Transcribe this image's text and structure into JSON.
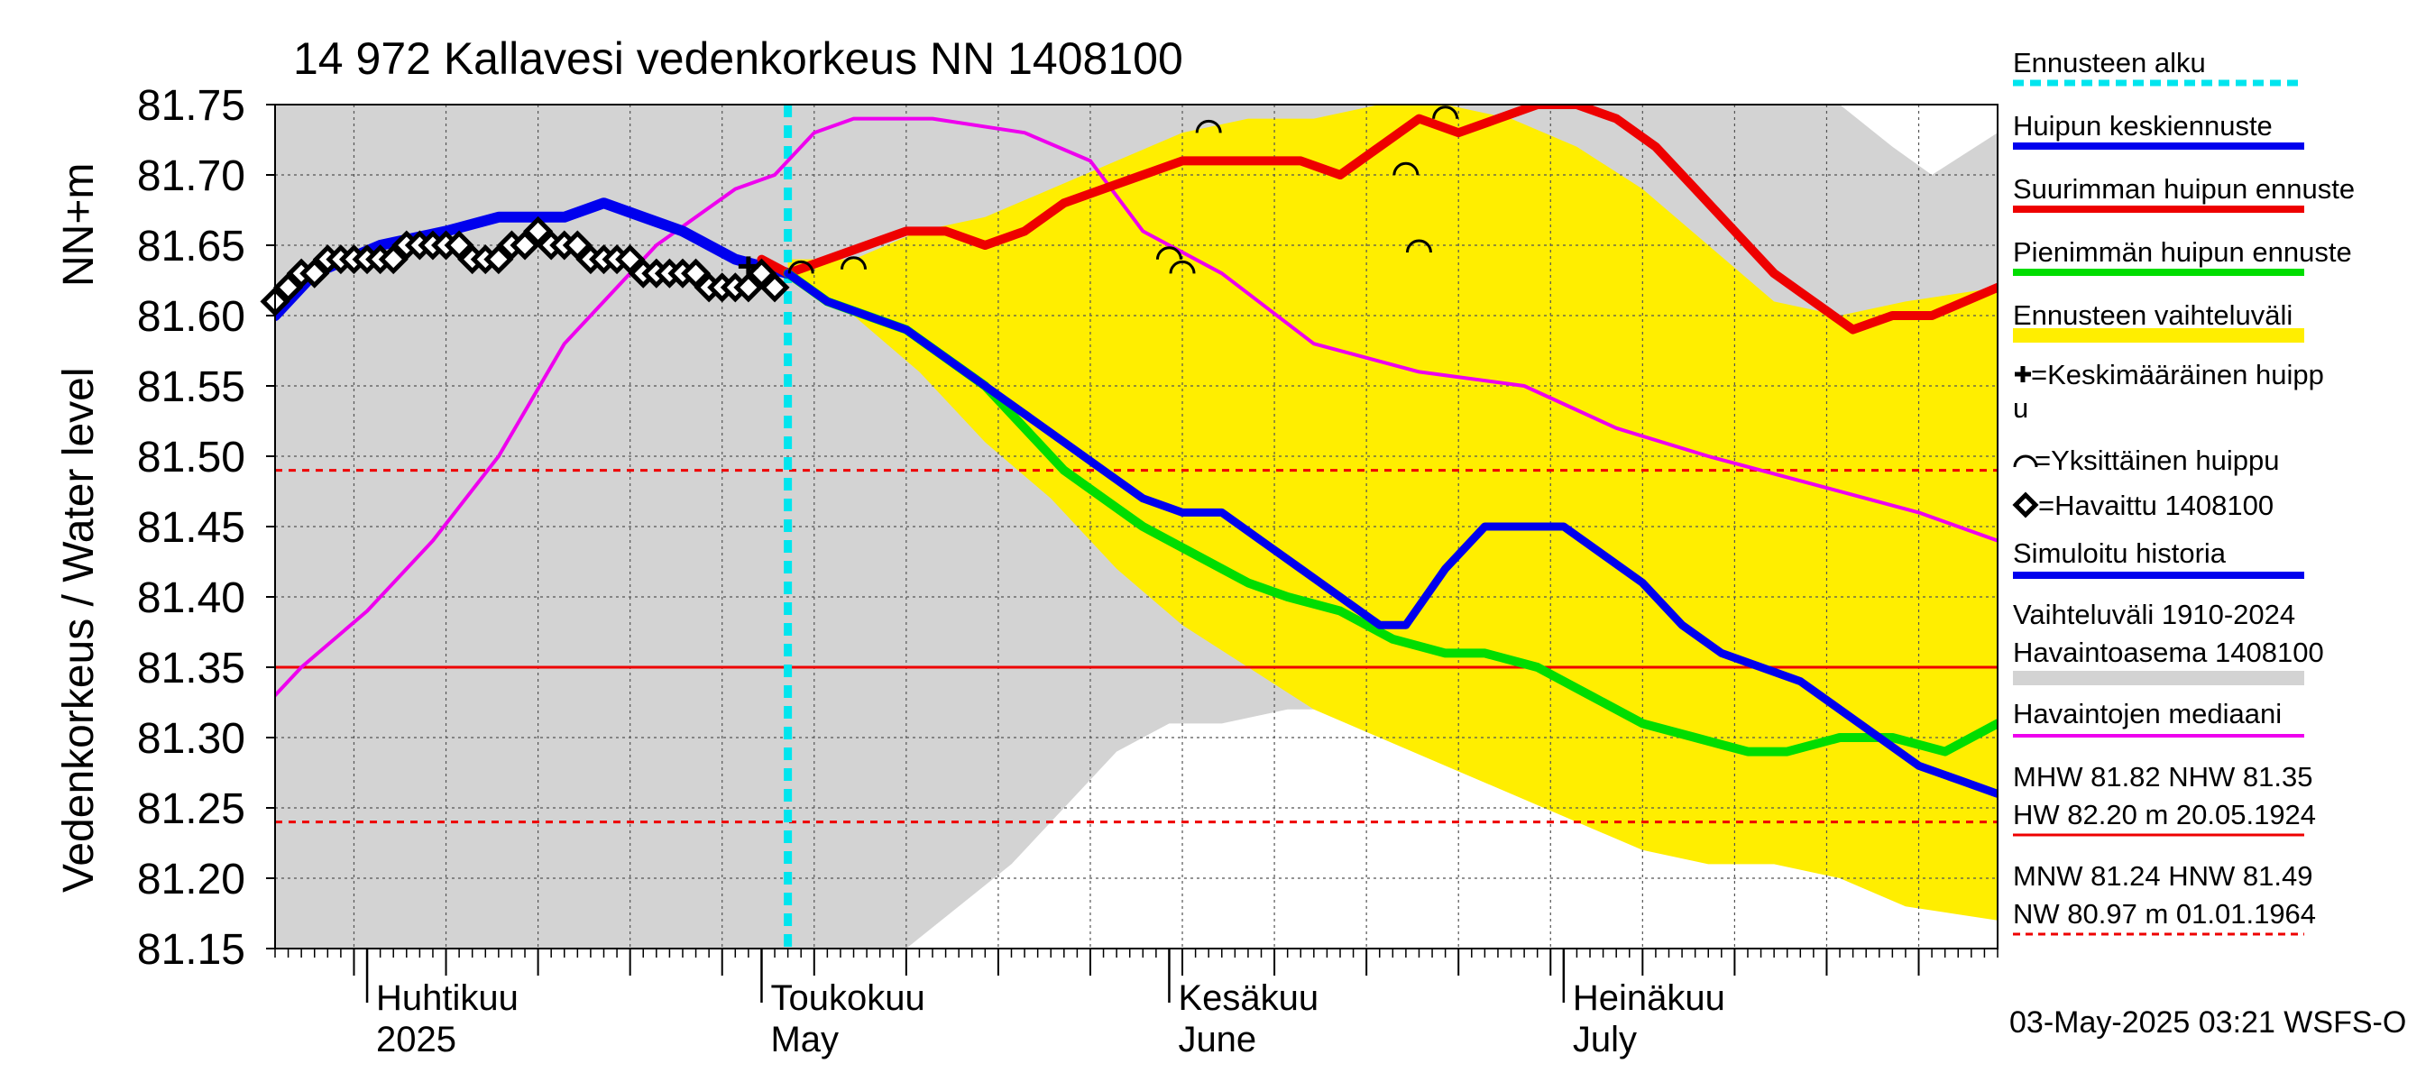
{
  "chart_data": {
    "type": "line",
    "title": "14 972 Kallavesi vedenkorkeus NN 1408100",
    "ylabel_top": "NN+m",
    "ylabel": "Vedenkorkeus / Water level",
    "footer": "03-May-2025 03:21 WSFS-O",
    "x_range": [
      "2025-03-25",
      "2025-08-03"
    ],
    "ylim": [
      81.15,
      81.75
    ],
    "yticks": [
      "81.75",
      "81.70",
      "81.65",
      "81.60",
      "81.55",
      "81.50",
      "81.45",
      "81.40",
      "81.35",
      "81.30",
      "81.25",
      "81.20",
      "81.15"
    ],
    "grid": true,
    "forecast_start": "2025-05-03",
    "month_labels": [
      {
        "date": "2025-04-01",
        "fi": "Huhtikuu",
        "en": "2025"
      },
      {
        "date": "2025-05-01",
        "fi": "Toukokuu",
        "en": "May"
      },
      {
        "date": "2025-06-01",
        "fi": "Kesäkuu",
        "en": "June"
      },
      {
        "date": "2025-07-01",
        "fi": "Heinäkuu",
        "en": "July"
      }
    ],
    "reference_lines": [
      {
        "name": "NHW",
        "value": 81.35,
        "color": "#ee0000",
        "style": "solid"
      },
      {
        "name": "HNW",
        "value": 81.49,
        "color": "#ee0000",
        "style": "dashed"
      },
      {
        "name": "MNW",
        "value": 81.24,
        "color": "#ee0000",
        "style": "dashed"
      }
    ],
    "legend": {
      "placement": "right",
      "items": [
        {
          "label": "Ennusteen alku",
          "color": "#00e5ee",
          "kind": "dashed-line"
        },
        {
          "label": "Huipun keskiennuste",
          "color": "#0000ee",
          "kind": "line"
        },
        {
          "label": "Suurimman huipun ennuste",
          "color": "#ee0000",
          "kind": "line"
        },
        {
          "label": "Pienimmän huipun ennuste",
          "color": "#00dd00",
          "kind": "line"
        },
        {
          "label": "Ennusteen vaihteluväli",
          "color": "#ffee00",
          "kind": "band"
        },
        {
          "label": "=Keskimääräinen huipp\nu",
          "color": "#000000",
          "kind": "plus"
        },
        {
          "label": "=Yksittäinen huippu",
          "color": "#000000",
          "kind": "arc"
        },
        {
          "label": "=Havaittu 1408100",
          "color": "#000000",
          "kind": "diamond"
        },
        {
          "label": "Simuloitu historia",
          "color": "#0000ee",
          "kind": "line"
        },
        {
          "label": "Vaihteluväli 1910-2024\n Havaintoasema 1408100",
          "color": "#d3d3d3",
          "kind": "band"
        },
        {
          "label": "Havaintojen mediaani",
          "color": "#ee00ee",
          "kind": "line"
        }
      ],
      "stats": [
        {
          "line1": "MHW  81.82 NHW  81.35",
          "line2": "HW  82.20 m 20.05.1924",
          "color": "#ee0000",
          "style": "solid"
        },
        {
          "line1": "MNW  81.24 HNW  81.49",
          "line2": "NW  80.97 m 01.01.1964",
          "color": "#ee0000",
          "style": "dashed"
        }
      ]
    },
    "hist_band": {
      "color": "#d3d3d3",
      "x": [
        "2025-03-25",
        "2025-05-03",
        "2025-05-04",
        "2025-05-12",
        "2025-05-20",
        "2025-05-28",
        "2025-06-01",
        "2025-06-05",
        "2025-06-10",
        "2025-06-14",
        "2025-06-18",
        "2025-06-25",
        "2025-07-02",
        "2025-07-08",
        "2025-07-15",
        "2025-07-22",
        "2025-07-26",
        "2025-07-29",
        "2025-08-03"
      ],
      "upper": [
        81.75,
        81.75,
        81.75,
        81.75,
        81.75,
        81.75,
        81.75,
        81.75,
        81.75,
        81.75,
        81.75,
        81.75,
        81.75,
        81.75,
        81.75,
        81.75,
        81.72,
        81.7,
        81.73
      ],
      "lower": [
        81.15,
        81.15,
        81.15,
        81.15,
        81.21,
        81.29,
        81.31,
        81.31,
        81.32,
        81.32,
        81.32,
        81.32,
        81.32,
        81.32,
        81.32,
        81.32,
        81.32,
        81.32,
        81.32
      ]
    },
    "forecast_band": {
      "color": "#ffee00",
      "x": [
        "2025-05-03",
        "2025-05-08",
        "2025-05-13",
        "2025-05-18",
        "2025-05-23",
        "2025-05-28",
        "2025-06-02",
        "2025-06-07",
        "2025-06-12",
        "2025-06-17",
        "2025-06-22",
        "2025-06-27",
        "2025-07-02",
        "2025-07-07",
        "2025-07-12",
        "2025-07-17",
        "2025-07-22",
        "2025-07-27",
        "2025-08-03"
      ],
      "upper": [
        81.64,
        81.64,
        81.66,
        81.67,
        81.69,
        81.71,
        81.73,
        81.74,
        81.74,
        81.75,
        81.75,
        81.74,
        81.72,
        81.69,
        81.65,
        81.61,
        81.6,
        81.61,
        81.62
      ],
      "lower": [
        81.63,
        81.6,
        81.56,
        81.51,
        81.47,
        81.42,
        81.38,
        81.35,
        81.32,
        81.3,
        81.28,
        81.26,
        81.24,
        81.22,
        81.21,
        81.21,
        81.2,
        81.18,
        81.17
      ]
    },
    "series": [
      {
        "name": "Havaintojen mediaani",
        "color": "#ee00ee",
        "width": 4,
        "x": [
          "2025-03-25",
          "2025-03-27",
          "2025-04-01",
          "2025-04-06",
          "2025-04-11",
          "2025-04-16",
          "2025-04-20",
          "2025-04-23",
          "2025-04-26",
          "2025-04-29",
          "2025-05-02",
          "2025-05-05",
          "2025-05-08",
          "2025-05-14",
          "2025-05-21",
          "2025-05-26",
          "2025-05-30",
          "2025-06-05",
          "2025-06-12",
          "2025-06-20",
          "2025-06-28",
          "2025-07-05",
          "2025-07-12",
          "2025-07-20",
          "2025-07-28",
          "2025-08-03"
        ],
        "y": [
          81.33,
          81.35,
          81.39,
          81.44,
          81.5,
          81.58,
          81.62,
          81.65,
          81.67,
          81.69,
          81.7,
          81.73,
          81.74,
          81.74,
          81.73,
          81.71,
          81.66,
          81.63,
          81.58,
          81.56,
          81.55,
          81.52,
          81.5,
          81.48,
          81.46,
          81.44
        ]
      },
      {
        "name": "Simuloitu historia",
        "color": "#0000ee",
        "width": 12,
        "x": [
          "2025-03-25",
          "2025-03-28",
          "2025-04-02",
          "2025-04-07",
          "2025-04-11",
          "2025-04-16",
          "2025-04-19",
          "2025-04-22",
          "2025-04-25",
          "2025-04-29",
          "2025-05-03"
        ],
        "y": [
          81.6,
          81.63,
          81.65,
          81.66,
          81.67,
          81.67,
          81.68,
          81.67,
          81.66,
          81.64,
          81.63
        ]
      },
      {
        "name": "Havaittu 1408100",
        "color": "#000000",
        "width": 3,
        "marker": "diamond",
        "x": [
          "2025-03-25",
          "2025-03-26",
          "2025-03-27",
          "2025-03-28",
          "2025-03-29",
          "2025-03-30",
          "2025-03-31",
          "2025-04-01",
          "2025-04-02",
          "2025-04-03",
          "2025-04-04",
          "2025-04-05",
          "2025-04-06",
          "2025-04-07",
          "2025-04-08",
          "2025-04-09",
          "2025-04-10",
          "2025-04-11",
          "2025-04-12",
          "2025-04-13",
          "2025-04-14",
          "2025-04-15",
          "2025-04-16",
          "2025-04-17",
          "2025-04-18",
          "2025-04-19",
          "2025-04-20",
          "2025-04-21",
          "2025-04-22",
          "2025-04-23",
          "2025-04-24",
          "2025-04-25",
          "2025-04-26",
          "2025-04-27",
          "2025-04-28",
          "2025-04-29",
          "2025-04-30",
          "2025-05-01",
          "2025-05-02"
        ],
        "y": [
          81.61,
          81.62,
          81.63,
          81.63,
          81.64,
          81.64,
          81.64,
          81.64,
          81.64,
          81.64,
          81.65,
          81.65,
          81.65,
          81.65,
          81.65,
          81.64,
          81.64,
          81.64,
          81.65,
          81.65,
          81.66,
          81.65,
          81.65,
          81.65,
          81.64,
          81.64,
          81.64,
          81.64,
          81.63,
          81.63,
          81.63,
          81.63,
          81.63,
          81.62,
          81.62,
          81.62,
          81.62,
          81.63,
          81.62
        ]
      },
      {
        "name": "Suurimman huipun ennuste",
        "color": "#ee0000",
        "width": 10,
        "x": [
          "2025-05-01",
          "2025-05-03",
          "2025-05-06",
          "2025-05-09",
          "2025-05-12",
          "2025-05-15",
          "2025-05-18",
          "2025-05-21",
          "2025-05-24",
          "2025-05-27",
          "2025-05-30",
          "2025-06-02",
          "2025-06-05",
          "2025-06-08",
          "2025-06-11",
          "2025-06-14",
          "2025-06-17",
          "2025-06-20",
          "2025-06-23",
          "2025-06-26",
          "2025-06-29",
          "2025-07-02",
          "2025-07-05",
          "2025-07-08",
          "2025-07-11",
          "2025-07-14",
          "2025-07-17",
          "2025-07-20",
          "2025-07-23",
          "2025-07-26",
          "2025-07-29",
          "2025-08-03"
        ],
        "y": [
          81.64,
          81.63,
          81.64,
          81.65,
          81.66,
          81.66,
          81.65,
          81.66,
          81.68,
          81.69,
          81.7,
          81.71,
          81.71,
          81.71,
          81.71,
          81.7,
          81.72,
          81.74,
          81.73,
          81.74,
          81.75,
          81.75,
          81.74,
          81.72,
          81.69,
          81.66,
          81.63,
          81.61,
          81.59,
          81.6,
          81.6,
          81.62
        ]
      },
      {
        "name": "Pienimmän huipun ennuste",
        "color": "#00dd00",
        "width": 10,
        "x": [
          "2025-05-03",
          "2025-05-06",
          "2025-05-09",
          "2025-05-12",
          "2025-05-15",
          "2025-05-18",
          "2025-05-21",
          "2025-05-24",
          "2025-05-27",
          "2025-05-30",
          "2025-06-03",
          "2025-06-07",
          "2025-06-10",
          "2025-06-14",
          "2025-06-18",
          "2025-06-22",
          "2025-06-25",
          "2025-06-29",
          "2025-07-03",
          "2025-07-07",
          "2025-07-11",
          "2025-07-15",
          "2025-07-18",
          "2025-07-22",
          "2025-07-26",
          "2025-07-30",
          "2025-08-03"
        ],
        "y": [
          81.63,
          81.61,
          81.6,
          81.59,
          81.57,
          81.55,
          81.52,
          81.49,
          81.47,
          81.45,
          81.43,
          81.41,
          81.4,
          81.39,
          81.37,
          81.36,
          81.36,
          81.35,
          81.33,
          81.31,
          81.3,
          81.29,
          81.29,
          81.3,
          81.3,
          81.29,
          81.31
        ]
      },
      {
        "name": "Huipun keskiennuste",
        "color": "#0000ee",
        "width": 9,
        "x": [
          "2025-05-03",
          "2025-05-06",
          "2025-05-09",
          "2025-05-12",
          "2025-05-15",
          "2025-05-18",
          "2025-05-21",
          "2025-05-24",
          "2025-05-27",
          "2025-05-30",
          "2025-06-02",
          "2025-06-05",
          "2025-06-08",
          "2025-06-11",
          "2025-06-14",
          "2025-06-17",
          "2025-06-19",
          "2025-06-22",
          "2025-06-25",
          "2025-06-28",
          "2025-07-01",
          "2025-07-04",
          "2025-07-07",
          "2025-07-10",
          "2025-07-13",
          "2025-07-16",
          "2025-07-19",
          "2025-07-22",
          "2025-07-25",
          "2025-07-28",
          "2025-07-31",
          "2025-08-03"
        ],
        "y": [
          81.63,
          81.61,
          81.6,
          81.59,
          81.57,
          81.55,
          81.53,
          81.51,
          81.49,
          81.47,
          81.46,
          81.46,
          81.44,
          81.42,
          81.4,
          81.38,
          81.38,
          81.42,
          81.45,
          81.45,
          81.45,
          81.43,
          81.41,
          81.38,
          81.36,
          81.35,
          81.34,
          81.32,
          81.3,
          81.28,
          81.27,
          81.26
        ]
      }
    ],
    "single_peaks": [
      {
        "x": "2025-05-04",
        "y": 81.635
      },
      {
        "x": "2025-05-08",
        "y": 81.638
      },
      {
        "x": "2025-06-01",
        "y": 81.645
      },
      {
        "x": "2025-06-02",
        "y": 81.635
      },
      {
        "x": "2025-06-04",
        "y": 81.735
      },
      {
        "x": "2025-06-19",
        "y": 81.705
      },
      {
        "x": "2025-06-20",
        "y": 81.65
      },
      {
        "x": "2025-06-22",
        "y": 81.745
      }
    ],
    "mean_peak": {
      "x": "2025-04-30",
      "y": 81.635
    }
  }
}
